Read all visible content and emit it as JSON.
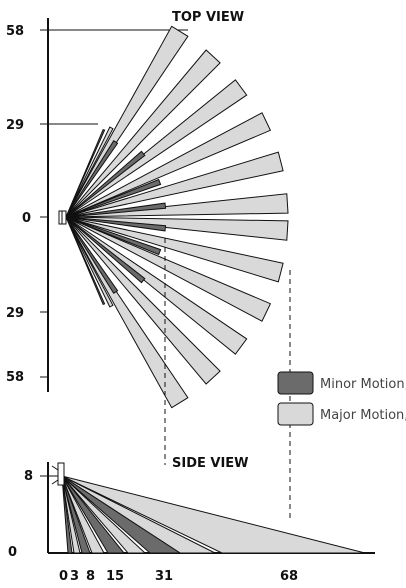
{
  "top_view": {
    "title": "TOP VIEW",
    "y_ticks": [
      "58",
      "29",
      "0",
      "29",
      "58"
    ]
  },
  "side_view": {
    "title": "SIDE VIEW",
    "y_ticks": [
      "8",
      "0"
    ],
    "x_ticks": [
      "0",
      "3",
      "8",
      "15",
      "31",
      "68"
    ]
  },
  "legend": {
    "minor_label": "Minor Motion, IR",
    "major_label": "Major Motion, IR",
    "minor_color": "#6b6b6b",
    "major_color": "#d9d9d9"
  }
}
